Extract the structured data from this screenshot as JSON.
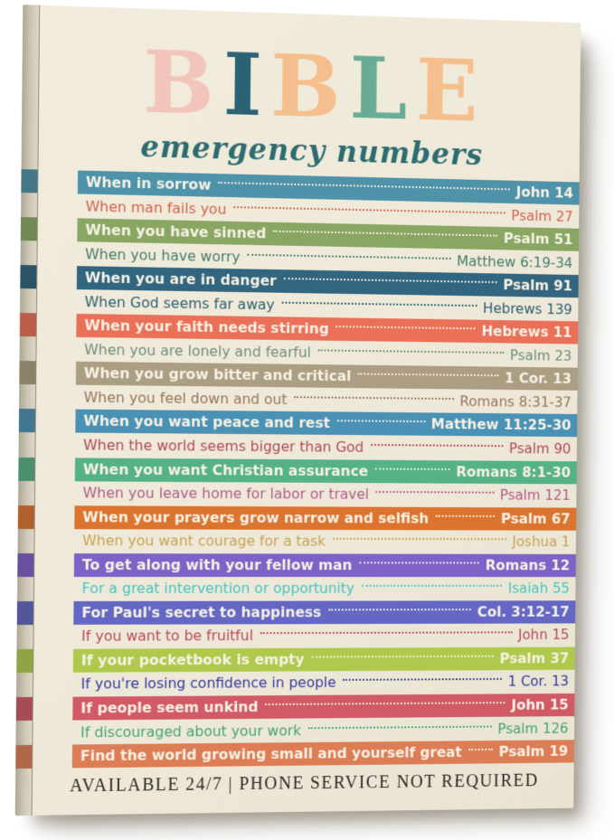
{
  "poster": {
    "canvas_bg": "#efe9da",
    "title_letters": [
      {
        "char": "B",
        "color": "#f2c4ba"
      },
      {
        "char": "I",
        "color": "#2b6375"
      },
      {
        "char": "B",
        "color": "#f4bf8c"
      },
      {
        "char": "L",
        "color": "#68ac95"
      },
      {
        "char": "E",
        "color": "#f4bf8c"
      }
    ],
    "subtitle": "emergency numbers",
    "subtitle_color": "#2d6d72",
    "rows": [
      {
        "label": "When in sorrow",
        "ref": "John 14",
        "style": "bar",
        "color": "#4e93a9"
      },
      {
        "label": "When man fails you",
        "ref": "Psalm 27",
        "style": "text",
        "color": "#d2634c"
      },
      {
        "label": "When you have sinned",
        "ref": "Psalm 51",
        "style": "bar",
        "color": "#89a763"
      },
      {
        "label": "When you have worry",
        "ref": "Matthew 6:19-34",
        "style": "text",
        "color": "#467d6c"
      },
      {
        "label": "When you are in danger",
        "ref": "Psalm 91",
        "style": "bar",
        "color": "#32657f"
      },
      {
        "label": "When God seems far away",
        "ref": "Hebrews 139",
        "style": "text",
        "color": "#2c5f70"
      },
      {
        "label": "When your faith needs stirring",
        "ref": "Hebrews 11",
        "style": "bar",
        "color": "#eb7058"
      },
      {
        "label": "When you are lonely and fearful",
        "ref": "Psalm 23",
        "style": "text",
        "color": "#6f8f7c"
      },
      {
        "label": "When you grow bitter and critical",
        "ref": "1 Cor. 13",
        "style": "bar",
        "color": "#ab9e82"
      },
      {
        "label": "When you feel down and out",
        "ref": "Romans 8:31-37",
        "style": "text",
        "color": "#97765a"
      },
      {
        "label": "When you want peace and rest",
        "ref": "Matthew 11:25-30",
        "style": "bar",
        "color": "#4a92b5"
      },
      {
        "label": "When the world seems bigger than God",
        "ref": "Psalm 90",
        "style": "text",
        "color": "#b04a52"
      },
      {
        "label": "When you want Christian assurance",
        "ref": "Romans 8:1-30",
        "style": "bar",
        "color": "#55b286"
      },
      {
        "label": "When you leave home for labor or travel",
        "ref": "Psalm 121",
        "style": "text",
        "color": "#b05c88"
      },
      {
        "label": "When your prayers grow narrow and selfish",
        "ref": "Psalm 67",
        "style": "bar",
        "color": "#dc7430"
      },
      {
        "label": "When you want courage for a task",
        "ref": "Joshua 1",
        "style": "text",
        "color": "#c9a254"
      },
      {
        "label": "To get along with your fellow man",
        "ref": "Romans 12",
        "style": "bar",
        "color": "#7f62c8"
      },
      {
        "label": "For a great intervention or opportunity",
        "ref": "Isaiah 55",
        "style": "text",
        "color": "#45c4bf"
      },
      {
        "label": "For Paul's secret to happiness",
        "ref": "Col. 3:12-17",
        "style": "bar",
        "color": "#6468c4"
      },
      {
        "label": "If you want to be fruitful",
        "ref": "John 15",
        "style": "text",
        "color": "#b94a62"
      },
      {
        "label": "If your pocketbook is empty",
        "ref": "Psalm 37",
        "style": "bar",
        "color": "#afc94d"
      },
      {
        "label": "If you're losing confidence in people",
        "ref": "1 Cor. 13",
        "style": "text",
        "color": "#35399c"
      },
      {
        "label": "If people seem unkind",
        "ref": "John 15",
        "style": "bar",
        "color": "#d25a66"
      },
      {
        "label": "If discouraged about your work",
        "ref": "Psalm 126",
        "style": "text",
        "color": "#44a474"
      },
      {
        "label": "Find the world growing small and yourself great",
        "ref": "Psalm 19",
        "style": "bar",
        "color": "#dd7d55"
      }
    ],
    "footer": "AVAILABLE 24/7 | PHONE SERVICE NOT REQUIRED"
  }
}
